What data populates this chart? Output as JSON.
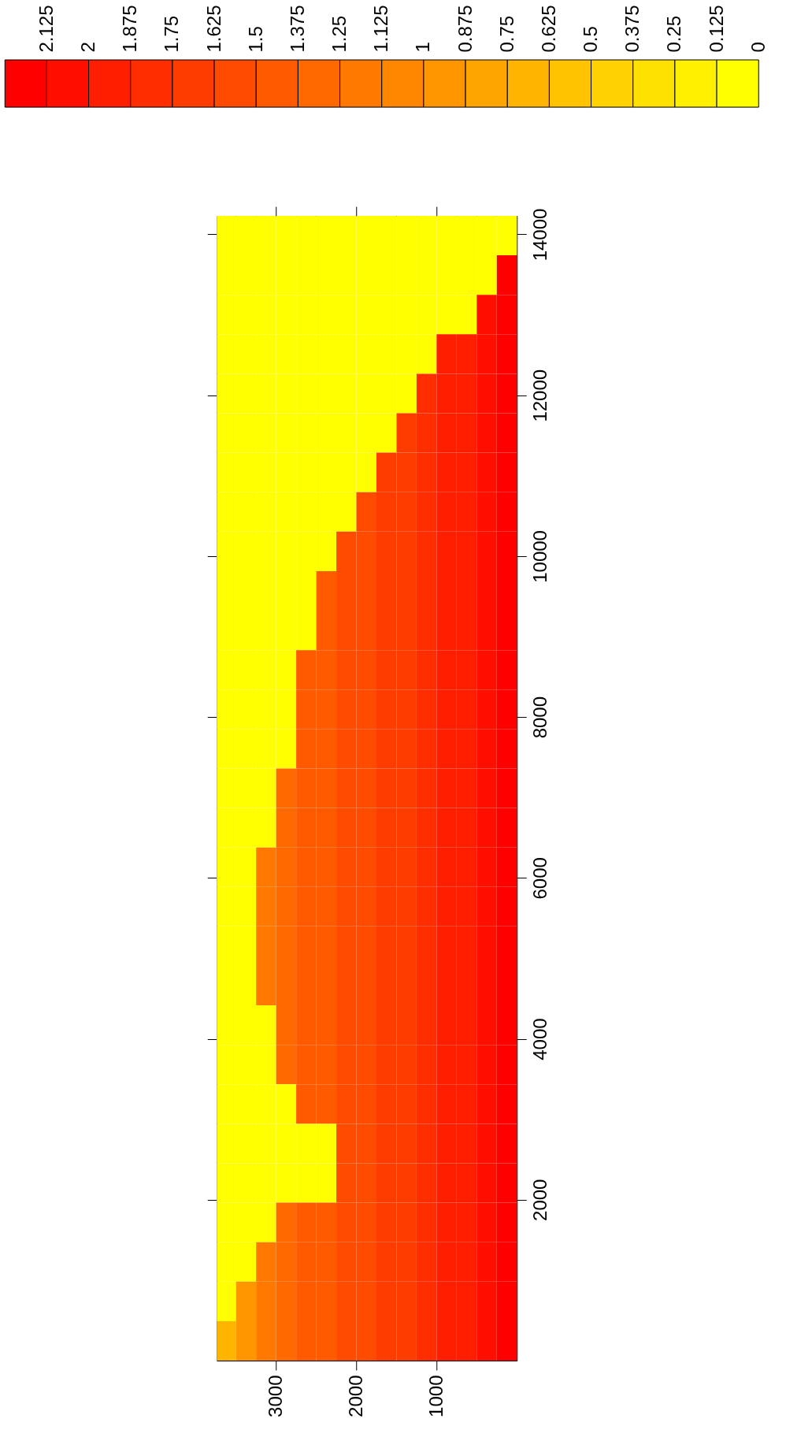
{
  "chart_data": {
    "type": "heatmap",
    "x": [
      3625,
      3375,
      3125,
      2875,
      2625,
      2375,
      2125,
      1875,
      1625,
      1375,
      1125,
      875,
      625,
      375,
      125
    ],
    "cells": [
      [
        0,
        0,
        0,
        0,
        0,
        0,
        0,
        0,
        0,
        0,
        0,
        0,
        0,
        0,
        0
      ],
      [
        0,
        0,
        0,
        0,
        0,
        0,
        0,
        0,
        0,
        0,
        0,
        0,
        0,
        0,
        2.125
      ],
      [
        0,
        0,
        0,
        0,
        0,
        0,
        0,
        0,
        0,
        0,
        0,
        0,
        0,
        2,
        2.125
      ],
      [
        0,
        0,
        0,
        0,
        0,
        0,
        0,
        0,
        0,
        0,
        0,
        1.875,
        1.875,
        2,
        2.125
      ],
      [
        0,
        0,
        0,
        0,
        0,
        0,
        0,
        0,
        0,
        0,
        1.75,
        1.875,
        1.875,
        2,
        2.125
      ],
      [
        0,
        0,
        0,
        0,
        0,
        0,
        0,
        0,
        0,
        1.625,
        1.75,
        1.875,
        1.875,
        2,
        2.125
      ],
      [
        0,
        0,
        0,
        0,
        0,
        0,
        0,
        0,
        1.625,
        1.625,
        1.75,
        1.875,
        1.875,
        2,
        2.125
      ],
      [
        0,
        0,
        0,
        0,
        0,
        0,
        0,
        1.5,
        1.625,
        1.625,
        1.75,
        1.875,
        1.875,
        2,
        2.125
      ],
      [
        0,
        0,
        0,
        0,
        0,
        0,
        1.5,
        1.5,
        1.625,
        1.625,
        1.75,
        1.875,
        1.875,
        2,
        2.125
      ],
      [
        0,
        0,
        0,
        0,
        0,
        1.375,
        1.5,
        1.5,
        1.625,
        1.625,
        1.75,
        1.875,
        1.875,
        2,
        2.125
      ],
      [
        0,
        0,
        0,
        0,
        0,
        1.375,
        1.5,
        1.5,
        1.625,
        1.625,
        1.75,
        1.875,
        1.875,
        2,
        2.125
      ],
      [
        0,
        0,
        0,
        0,
        1.375,
        1.375,
        1.5,
        1.5,
        1.625,
        1.625,
        1.75,
        1.875,
        1.875,
        2,
        2.125
      ],
      [
        0,
        0,
        0,
        0,
        1.375,
        1.375,
        1.5,
        1.5,
        1.625,
        1.625,
        1.75,
        1.875,
        1.875,
        2,
        2.125
      ],
      [
        0,
        0,
        0,
        0,
        1.375,
        1.375,
        1.5,
        1.5,
        1.625,
        1.625,
        1.75,
        1.875,
        1.875,
        2,
        2.125
      ],
      [
        0,
        0,
        0,
        1.25,
        1.375,
        1.375,
        1.5,
        1.5,
        1.625,
        1.625,
        1.75,
        1.875,
        1.875,
        2,
        2.125
      ],
      [
        0,
        0,
        0,
        1.25,
        1.375,
        1.375,
        1.5,
        1.5,
        1.625,
        1.625,
        1.75,
        1.875,
        1.875,
        2,
        2.125
      ],
      [
        0,
        0,
        1.125,
        1.25,
        1.375,
        1.375,
        1.5,
        1.5,
        1.625,
        1.625,
        1.75,
        1.875,
        1.875,
        2,
        2.125
      ],
      [
        0,
        0,
        1.125,
        1.25,
        1.375,
        1.375,
        1.5,
        1.5,
        1.625,
        1.625,
        1.75,
        1.875,
        1.875,
        2,
        2.125
      ],
      [
        0,
        0,
        1.125,
        1.25,
        1.375,
        1.375,
        1.5,
        1.5,
        1.625,
        1.625,
        1.75,
        1.875,
        1.875,
        2,
        2.125
      ],
      [
        0,
        0,
        1.125,
        1.25,
        1.375,
        1.375,
        1.5,
        1.5,
        1.625,
        1.625,
        1.75,
        1.875,
        1.875,
        2,
        2.125
      ],
      [
        0,
        0,
        0,
        1.25,
        1.375,
        1.375,
        1.5,
        1.5,
        1.625,
        1.625,
        1.75,
        1.875,
        1.875,
        2,
        2.125
      ],
      [
        0,
        0,
        0,
        1.25,
        1.375,
        1.375,
        1.5,
        1.5,
        1.625,
        1.625,
        1.75,
        1.875,
        1.875,
        2,
        2.125
      ],
      [
        0,
        0,
        0,
        0,
        1.375,
        1.375,
        1.5,
        1.5,
        1.625,
        1.625,
        1.75,
        1.875,
        1.875,
        2,
        2.125
      ],
      [
        0,
        0,
        0,
        0,
        0,
        0,
        1.5,
        1.5,
        1.625,
        1.625,
        1.75,
        1.875,
        1.875,
        2,
        2.125
      ],
      [
        0,
        0,
        0,
        0,
        0,
        0,
        1.5,
        1.5,
        1.625,
        1.625,
        1.75,
        1.875,
        1.875,
        2,
        2.125
      ],
      [
        0,
        0,
        0,
        1.25,
        1.375,
        1.375,
        1.5,
        1.5,
        1.625,
        1.625,
        1.75,
        1.875,
        1.875,
        2,
        2.125
      ],
      [
        0,
        0,
        1.125,
        1.25,
        1.375,
        1.375,
        1.5,
        1.5,
        1.625,
        1.625,
        1.75,
        1.875,
        1.875,
        2,
        2.125
      ],
      [
        0,
        0.875,
        1.125,
        1.25,
        1.375,
        1.375,
        1.5,
        1.5,
        1.625,
        1.625,
        1.75,
        1.875,
        1.875,
        2,
        2.125
      ],
      [
        0.625,
        0.875,
        1.125,
        1.25,
        1.375,
        1.375,
        1.5,
        1.5,
        1.625,
        1.625,
        1.75,
        1.875,
        1.875,
        2,
        2.125
      ]
    ],
    "xlim": [
      3740,
      0
    ],
    "xticks": [
      3000,
      2000,
      1000
    ],
    "ylim": [
      0,
      14230
    ],
    "yticks": [
      2000,
      4000,
      6000,
      8000,
      10000,
      12000,
      14000
    ],
    "clim": [
      2.25,
      0
    ],
    "cticks": [
      2.125,
      2,
      1.875,
      1.75,
      1.625,
      1.5,
      1.375,
      1.25,
      1.125,
      1,
      0.875,
      0.75,
      0.625,
      0.5,
      0.375,
      0.25,
      0.125,
      0
    ],
    "colors": [
      "#ff0000",
      "#ff0f00",
      "#ff1e00",
      "#ff2d00",
      "#ff3c00",
      "#ff4b00",
      "#ff5a00",
      "#ff6900",
      "#ff7800",
      "#ff8700",
      "#ff9600",
      "#ffa500",
      "#ffb400",
      "#ffc300",
      "#ffd200",
      "#ffe100",
      "#fff000",
      "#ffff00"
    ]
  }
}
